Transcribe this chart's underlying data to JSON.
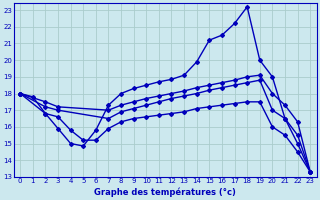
{
  "background_color": "#cce8ee",
  "grid_color": "#aacccc",
  "line_color": "#0000bb",
  "xlabel": "Graphe des températures (°c)",
  "xlim": [
    -0.5,
    23.5
  ],
  "ylim": [
    13,
    23.4
  ],
  "yticks": [
    13,
    14,
    15,
    16,
    17,
    18,
    19,
    20,
    21,
    22,
    23
  ],
  "xticks": [
    0,
    1,
    2,
    3,
    4,
    5,
    6,
    7,
    8,
    9,
    10,
    11,
    12,
    13,
    14,
    15,
    16,
    17,
    18,
    19,
    20,
    21,
    22,
    23
  ],
  "line1_x": [
    0,
    1,
    2,
    3,
    4,
    5,
    6,
    7,
    8,
    9,
    10,
    11,
    12,
    13,
    14,
    15,
    16,
    17,
    18,
    19,
    20,
    21,
    22,
    23
  ],
  "line1_y": [
    18.0,
    17.8,
    16.8,
    15.9,
    15.0,
    14.85,
    15.8,
    17.3,
    18.0,
    18.3,
    18.5,
    18.7,
    18.85,
    19.1,
    19.9,
    21.2,
    21.5,
    22.2,
    23.2,
    20.0,
    19.0,
    16.5,
    15.0,
    13.3
  ],
  "line2_x": [
    0,
    2,
    3,
    7,
    8,
    9,
    10,
    11,
    12,
    13,
    14,
    15,
    16,
    17,
    18,
    19,
    20,
    21,
    22,
    23
  ],
  "line2_y": [
    18.0,
    17.5,
    17.2,
    17.0,
    17.3,
    17.5,
    17.7,
    17.85,
    18.0,
    18.15,
    18.35,
    18.5,
    18.65,
    18.8,
    19.0,
    19.1,
    18.0,
    17.3,
    16.3,
    13.3
  ],
  "line3_x": [
    0,
    2,
    3,
    7,
    8,
    9,
    10,
    11,
    12,
    13,
    14,
    15,
    16,
    17,
    18,
    19,
    20,
    21,
    22,
    23
  ],
  "line3_y": [
    18.0,
    17.2,
    17.0,
    16.5,
    16.9,
    17.1,
    17.3,
    17.5,
    17.7,
    17.85,
    18.0,
    18.2,
    18.35,
    18.5,
    18.65,
    18.8,
    17.0,
    16.5,
    15.5,
    13.3
  ],
  "line4_x": [
    0,
    2,
    3,
    4,
    5,
    6,
    7,
    8,
    9,
    10,
    11,
    12,
    13,
    14,
    15,
    16,
    17,
    18,
    19,
    20,
    21,
    22,
    23
  ],
  "line4_y": [
    18.0,
    16.8,
    16.6,
    15.8,
    15.2,
    15.2,
    15.9,
    16.3,
    16.5,
    16.6,
    16.7,
    16.8,
    16.9,
    17.1,
    17.2,
    17.3,
    17.4,
    17.5,
    17.5,
    16.0,
    15.5,
    14.5,
    13.3
  ]
}
